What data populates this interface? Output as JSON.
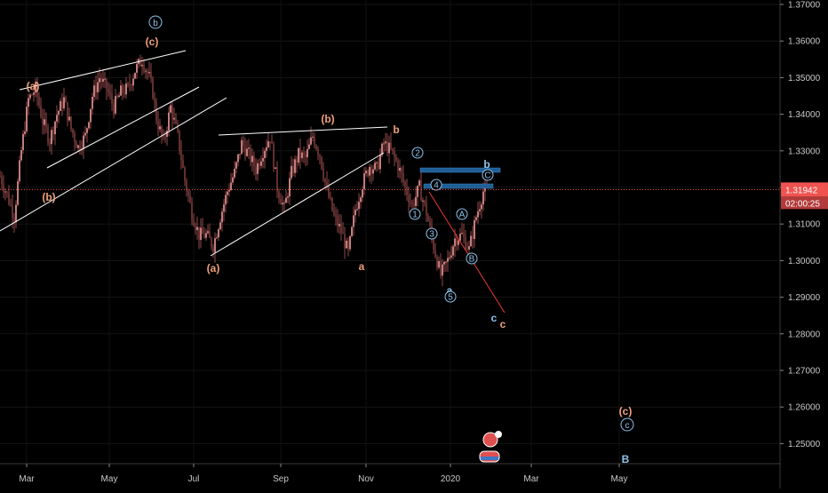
{
  "chart_data": {
    "type": "candlestick",
    "symbol_pair": "GBPUSD",
    "price_axis": {
      "ticks": [
        "1.37000",
        "1.36000",
        "1.35000",
        "1.34000",
        "1.33000",
        "1.32000",
        "1.31000",
        "1.30000",
        "1.29000",
        "1.28000",
        "1.27000",
        "1.26000",
        "1.25000"
      ],
      "ylim": [
        1.245,
        1.372
      ]
    },
    "time_axis": {
      "ticks": [
        "Mar",
        "May",
        "Jul",
        "Sep",
        "Nov",
        "2020",
        "Mar",
        "May"
      ]
    },
    "last_price": {
      "value": "1.31942",
      "countdown": "02:00:25",
      "color": "#ef5350"
    },
    "colors": {
      "up": "#ef9a9a",
      "down": "#7a3b3b",
      "wick": "#b55a5a",
      "trend": "#ffffff",
      "box": "#1f5f96",
      "projection": "#e53935"
    },
    "price_path": [
      [
        0,
        1.323
      ],
      [
        4,
        1.318
      ],
      [
        8,
        1.312
      ],
      [
        12,
        1.33
      ],
      [
        16,
        1.344
      ],
      [
        20,
        1.347
      ],
      [
        24,
        1.338
      ],
      [
        28,
        1.333
      ],
      [
        32,
        1.34
      ],
      [
        36,
        1.344
      ],
      [
        40,
        1.336
      ],
      [
        44,
        1.331
      ],
      [
        48,
        1.334
      ],
      [
        52,
        1.345
      ],
      [
        56,
        1.35
      ],
      [
        60,
        1.347
      ],
      [
        64,
        1.342
      ],
      [
        68,
        1.346
      ],
      [
        72,
        1.347
      ],
      [
        76,
        1.352
      ],
      [
        80,
        1.355
      ],
      [
        84,
        1.35
      ],
      [
        86,
        1.346
      ],
      [
        88,
        1.339
      ],
      [
        92,
        1.332
      ],
      [
        96,
        1.342
      ],
      [
        100,
        1.334
      ],
      [
        104,
        1.322
      ],
      [
        108,
        1.313
      ],
      [
        112,
        1.307
      ],
      [
        116,
        1.307
      ],
      [
        120,
        1.304
      ],
      [
        124,
        1.312
      ],
      [
        128,
        1.319
      ],
      [
        132,
        1.324
      ],
      [
        136,
        1.332
      ],
      [
        140,
        1.329
      ],
      [
        144,
        1.325
      ],
      [
        148,
        1.33
      ],
      [
        152,
        1.334
      ],
      [
        156,
        1.32
      ],
      [
        160,
        1.314
      ],
      [
        164,
        1.324
      ],
      [
        168,
        1.329
      ],
      [
        172,
        1.328
      ],
      [
        176,
        1.334
      ],
      [
        180,
        1.329
      ],
      [
        184,
        1.319
      ],
      [
        188,
        1.312
      ],
      [
        192,
        1.308
      ],
      [
        196,
        1.302
      ],
      [
        200,
        1.314
      ],
      [
        204,
        1.321
      ],
      [
        208,
        1.326
      ],
      [
        212,
        1.325
      ],
      [
        216,
        1.332
      ],
      [
        220,
        1.33
      ],
      [
        224,
        1.326
      ],
      [
        228,
        1.32
      ],
      [
        232,
        1.315
      ],
      [
        236,
        1.32
      ],
      [
        240,
        1.313
      ],
      [
        244,
        1.304
      ],
      [
        248,
        1.296
      ],
      [
        252,
        1.3
      ],
      [
        256,
        1.306
      ],
      [
        260,
        1.307
      ],
      [
        264,
        1.303
      ],
      [
        268,
        1.312
      ],
      [
        272,
        1.319
      ],
      [
        274,
        1.3196
      ]
    ],
    "wave_labels": [
      {
        "text": "(a)",
        "color": "orange"
      },
      {
        "text": "(b)",
        "color": "orange"
      },
      {
        "text": "(c)",
        "color": "orange"
      },
      {
        "text": "b",
        "color": "blue-circle"
      },
      {
        "text": "(a)",
        "color": "orange"
      },
      {
        "text": "(b)",
        "color": "orange"
      },
      {
        "text": "b",
        "color": "orange"
      },
      {
        "text": "a",
        "color": "orange"
      },
      {
        "text": "a",
        "color": "blue"
      },
      {
        "text": "b",
        "color": "blue"
      },
      {
        "text": "c",
        "color": "blue"
      },
      {
        "text": "c",
        "color": "orange"
      },
      {
        "text": "(c)",
        "color": "orange"
      },
      {
        "text": "c",
        "color": "blue-circle"
      },
      {
        "text": "B",
        "color": "blue"
      }
    ],
    "circled_labels": [
      "1",
      "2",
      "3",
      "4",
      "5",
      "A",
      "B",
      "C"
    ]
  }
}
